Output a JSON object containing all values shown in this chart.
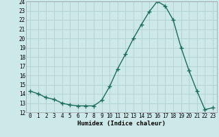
{
  "x": [
    0,
    1,
    2,
    3,
    4,
    5,
    6,
    7,
    8,
    9,
    10,
    11,
    12,
    13,
    14,
    15,
    16,
    17,
    18,
    19,
    20,
    21,
    22,
    23
  ],
  "y": [
    14.3,
    14.0,
    13.6,
    13.4,
    13.0,
    12.8,
    12.7,
    12.7,
    12.7,
    13.3,
    14.8,
    16.7,
    18.3,
    20.0,
    21.5,
    22.9,
    24.0,
    23.5,
    22.0,
    19.0,
    16.5,
    14.3,
    12.3,
    12.5
  ],
  "xlabel": "Humidex (Indice chaleur)",
  "line_color": "#1a6b5a",
  "bg_color": "#cce8e8",
  "grid_color": "#aacccc",
  "ylim": [
    12,
    24
  ],
  "xlim": [
    -0.5,
    23.5
  ],
  "yticks": [
    12,
    13,
    14,
    15,
    16,
    17,
    18,
    19,
    20,
    21,
    22,
    23,
    24
  ],
  "xticks": [
    0,
    1,
    2,
    3,
    4,
    5,
    6,
    7,
    8,
    9,
    10,
    11,
    12,
    13,
    14,
    15,
    16,
    17,
    18,
    19,
    20,
    21,
    22,
    23
  ],
  "tick_fontsize": 5.5,
  "xlabel_fontsize": 6.5
}
